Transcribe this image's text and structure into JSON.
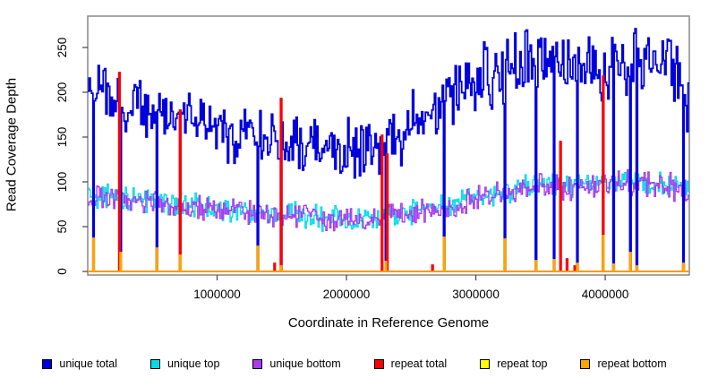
{
  "figure": {
    "background": "#ffffff"
  },
  "axis_style": {
    "box_color": "#888888",
    "tick_color": "#444444",
    "tick_label_color": "#000000",
    "tick_label_size": 13.5
  },
  "chart_data": {
    "type": "line",
    "subtype": "step-coverage",
    "title": "",
    "xlabel": "Coordinate in Reference Genome",
    "ylabel": "Read Coverage Depth",
    "xlim": [
      0,
      4650000
    ],
    "ylim": [
      0,
      290
    ],
    "grid": false,
    "legend_position": "bottom",
    "x_ticks": [
      {
        "value": 1000000,
        "label": "1000000"
      },
      {
        "value": 2000000,
        "label": "2000000"
      },
      {
        "value": 3000000,
        "label": "3000000"
      },
      {
        "value": 4000000,
        "label": "4000000"
      }
    ],
    "y_ticks": [
      {
        "value": 0,
        "label": "0"
      },
      {
        "value": 50,
        "label": "50"
      },
      {
        "value": 100,
        "label": "100"
      },
      {
        "value": 150,
        "label": "150"
      },
      {
        "value": 200,
        "label": "200"
      },
      {
        "value": 250,
        "label": "250"
      }
    ],
    "bin_size": 10000,
    "gaps_x": [
      35000,
      247000,
      530000,
      705000,
      1310000,
      1490000,
      2300000,
      2750000,
      3220000,
      3460000,
      3600000,
      3780000,
      3980000,
      4060000,
      4190000,
      4240000,
      4600000
    ],
    "series": [
      {
        "name": "unique total",
        "color": "#0000DD",
        "line_width": 1.8,
        "z": 3,
        "kind": "noisy-trend",
        "noise": 42,
        "seed": 11,
        "drop_to_zero_at_gaps": true,
        "trend_anchors": [
          [
            0,
            196
          ],
          [
            100000,
            200
          ],
          [
            200000,
            188
          ],
          [
            300000,
            186
          ],
          [
            400000,
            192
          ],
          [
            500000,
            185
          ],
          [
            600000,
            181
          ],
          [
            700000,
            172
          ],
          [
            800000,
            168
          ],
          [
            900000,
            163
          ],
          [
            1000000,
            158
          ],
          [
            1100000,
            152
          ],
          [
            1200000,
            150
          ],
          [
            1300000,
            155
          ],
          [
            1400000,
            150
          ],
          [
            1500000,
            148
          ],
          [
            1600000,
            142
          ],
          [
            1700000,
            138
          ],
          [
            1800000,
            136
          ],
          [
            1900000,
            132
          ],
          [
            2000000,
            134
          ],
          [
            2100000,
            138
          ],
          [
            2200000,
            140
          ],
          [
            2300000,
            144
          ],
          [
            2400000,
            152
          ],
          [
            2500000,
            162
          ],
          [
            2600000,
            172
          ],
          [
            2700000,
            184
          ],
          [
            2800000,
            196
          ],
          [
            2900000,
            206
          ],
          [
            3000000,
            212
          ],
          [
            3100000,
            216
          ],
          [
            3200000,
            222
          ],
          [
            3300000,
            228
          ],
          [
            3400000,
            238
          ],
          [
            3500000,
            242
          ],
          [
            3600000,
            232
          ],
          [
            3700000,
            226
          ],
          [
            3800000,
            230
          ],
          [
            3900000,
            228
          ],
          [
            4000000,
            226
          ],
          [
            4100000,
            230
          ],
          [
            4200000,
            233
          ],
          [
            4300000,
            234
          ],
          [
            4400000,
            230
          ],
          [
            4500000,
            224
          ],
          [
            4600000,
            210
          ],
          [
            4650000,
            188
          ]
        ]
      },
      {
        "name": "unique top",
        "color": "#00DCE8",
        "line_width": 1.3,
        "z": 1,
        "kind": "noisy-trend",
        "noise": 17,
        "seed": 22,
        "drop_to_zero_at_gaps": true,
        "trend_anchors": [
          [
            0,
            84
          ],
          [
            300000,
            80
          ],
          [
            600000,
            76
          ],
          [
            900000,
            72
          ],
          [
            1200000,
            68
          ],
          [
            1500000,
            65
          ],
          [
            1800000,
            61
          ],
          [
            2000000,
            58
          ],
          [
            2200000,
            60
          ],
          [
            2400000,
            64
          ],
          [
            2600000,
            69
          ],
          [
            2800000,
            75
          ],
          [
            3000000,
            82
          ],
          [
            3200000,
            88
          ],
          [
            3400000,
            95
          ],
          [
            3500000,
            100
          ],
          [
            3700000,
            94
          ],
          [
            3900000,
            96
          ],
          [
            4100000,
            100
          ],
          [
            4300000,
            102
          ],
          [
            4500000,
            98
          ],
          [
            4650000,
            88
          ]
        ]
      },
      {
        "name": "unique bottom",
        "color": "#A73AEE",
        "line_width": 1.3,
        "z": 2,
        "kind": "noisy-trend",
        "noise": 17,
        "seed": 33,
        "drop_to_zero_at_gaps": true,
        "trend_anchors": [
          [
            0,
            82
          ],
          [
            300000,
            79
          ],
          [
            600000,
            75
          ],
          [
            900000,
            70
          ],
          [
            1200000,
            67
          ],
          [
            1500000,
            63
          ],
          [
            1800000,
            60
          ],
          [
            2000000,
            57
          ],
          [
            2200000,
            59
          ],
          [
            2400000,
            63
          ],
          [
            2600000,
            68
          ],
          [
            2800000,
            74
          ],
          [
            3000000,
            80
          ],
          [
            3200000,
            87
          ],
          [
            3400000,
            93
          ],
          [
            3500000,
            98
          ],
          [
            3700000,
            93
          ],
          [
            3900000,
            95
          ],
          [
            4100000,
            98
          ],
          [
            4300000,
            100
          ],
          [
            4500000,
            96
          ],
          [
            4650000,
            86
          ]
        ]
      },
      {
        "name": "repeat total",
        "color": "#FF0000",
        "line_width": 1.8,
        "z": 5,
        "kind": "baseline-spikes",
        "baseline": 0,
        "spikes": [
          [
            235000,
            222
          ],
          [
            705000,
            180
          ],
          [
            1490000,
            193
          ],
          [
            2270000,
            152
          ],
          [
            2305000,
            131
          ],
          [
            3650000,
            145
          ],
          [
            3980000,
            218
          ],
          [
            1440000,
            9
          ],
          [
            2660000,
            7
          ],
          [
            3700000,
            14
          ],
          [
            3760000,
            6
          ],
          [
            4600000,
            8
          ]
        ]
      },
      {
        "name": "repeat top",
        "color": "#FFFF00",
        "line_width": 1.5,
        "z": 4,
        "kind": "baseline-spikes",
        "baseline": 0,
        "spikes": [
          [
            235000,
            13
          ],
          [
            2750000,
            6
          ],
          [
            3980000,
            11
          ]
        ]
      },
      {
        "name": "repeat bottom",
        "color": "#FFA500",
        "line_width": 1.8,
        "z": 6,
        "kind": "baseline-spikes",
        "baseline": 0,
        "spikes": [
          [
            35000,
            37
          ],
          [
            247000,
            21
          ],
          [
            530000,
            26
          ],
          [
            705000,
            18
          ],
          [
            1310000,
            28
          ],
          [
            1490000,
            6
          ],
          [
            2300000,
            11
          ],
          [
            2750000,
            38
          ],
          [
            3220000,
            36
          ],
          [
            3460000,
            12
          ],
          [
            3600000,
            13
          ],
          [
            3780000,
            9
          ],
          [
            3980000,
            40
          ],
          [
            4060000,
            8
          ],
          [
            4190000,
            21
          ],
          [
            4240000,
            6
          ],
          [
            4600000,
            9
          ]
        ]
      }
    ]
  }
}
